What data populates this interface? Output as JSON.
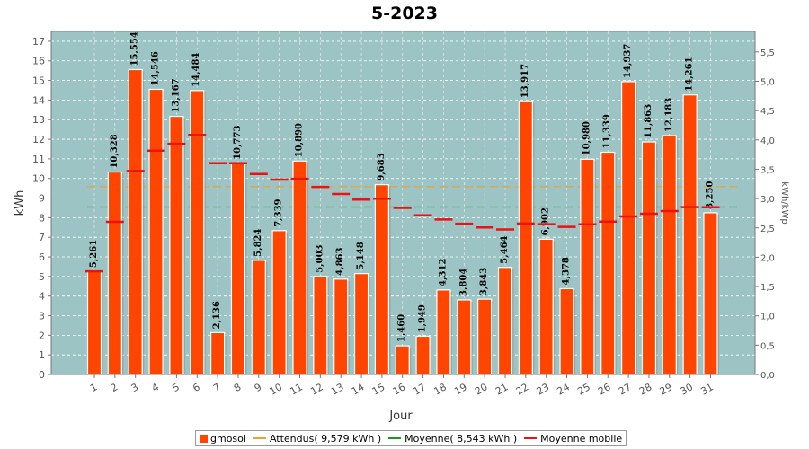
{
  "chart_data": {
    "type": "bar",
    "title": "5-2023",
    "xlabel": "Jour",
    "ylabel": "kWh",
    "y2label": "kWh/kWp",
    "ylim": [
      0,
      17.5
    ],
    "y2lim": [
      0,
      5.85
    ],
    "yticks": [
      "0",
      "1",
      "2",
      "3",
      "4",
      "5",
      "6",
      "7",
      "8",
      "9",
      "10",
      "11",
      "12",
      "13",
      "14",
      "15",
      "16",
      "17"
    ],
    "y2ticks": [
      "0,0",
      "0,5",
      "1,0",
      "1,5",
      "2,0",
      "2,5",
      "3,0",
      "3,5",
      "4,0",
      "4,5",
      "5,0",
      "5,5"
    ],
    "categories": [
      "1",
      "2",
      "3",
      "4",
      "5",
      "6",
      "7",
      "8",
      "9",
      "10",
      "11",
      "12",
      "13",
      "14",
      "15",
      "16",
      "17",
      "18",
      "19",
      "20",
      "21",
      "22",
      "23",
      "24",
      "25",
      "26",
      "27",
      "28",
      "29",
      "30",
      "31"
    ],
    "series": [
      {
        "name": "gmosol",
        "values": [
          5.261,
          10.328,
          15.554,
          14.546,
          13.167,
          14.484,
          2.136,
          10.773,
          5.824,
          7.339,
          10.89,
          5.003,
          4.863,
          5.148,
          9.683,
          1.46,
          1.949,
          4.312,
          3.804,
          3.843,
          5.464,
          13.917,
          6.902,
          4.378,
          10.98,
          11.339,
          14.937,
          11.863,
          12.183,
          14.261,
          8.25
        ],
        "labels": [
          "5,261",
          "10,328",
          "15,554",
          "14,546",
          "13,167",
          "14,484",
          "2,136",
          "10,773",
          "5,824",
          "7,339",
          "10,890",
          "5,003",
          "4,863",
          "5,148",
          "9,683",
          "1,460",
          "1,949",
          "4,312",
          "3,804",
          "3,843",
          "5,464",
          "13,917",
          "6,902",
          "4,378",
          "10,980",
          "11,339",
          "14,937",
          "11,863",
          "12,183",
          "14,261",
          "8,250"
        ]
      },
      {
        "name": "Moyenne mobile",
        "values": [
          5.26,
          7.79,
          10.38,
          11.42,
          11.77,
          12.22,
          10.78,
          10.78,
          10.23,
          9.94,
          9.98,
          9.57,
          9.21,
          8.92,
          8.97,
          8.5,
          8.12,
          7.91,
          7.69,
          7.5,
          7.4,
          7.7,
          7.67,
          7.53,
          7.66,
          7.8,
          8.06,
          8.2,
          8.34,
          8.54,
          8.53
        ]
      }
    ],
    "reference_lines": [
      {
        "name": "Attendus",
        "value": 9.579,
        "color": "#f0a030",
        "legend": "Attendus( 9,579 kWh )"
      },
      {
        "name": "Moyenne",
        "value": 8.543,
        "color": "#1a9a1a",
        "legend": "Moyenne( 8,543 kWh )"
      }
    ],
    "legend": [
      "gmosol",
      "Attendus( 9,579 kWh )",
      "Moyenne( 8,543 kWh )",
      "Moyenne mobile"
    ],
    "legend_position": "bottom",
    "colors": {
      "bar": "#ff4500",
      "plot_bg": "#9cc4c4",
      "moving_avg": "#ee1111",
      "attendus": "#f0a030",
      "moyenne": "#1a9a1a"
    },
    "grid": true
  }
}
